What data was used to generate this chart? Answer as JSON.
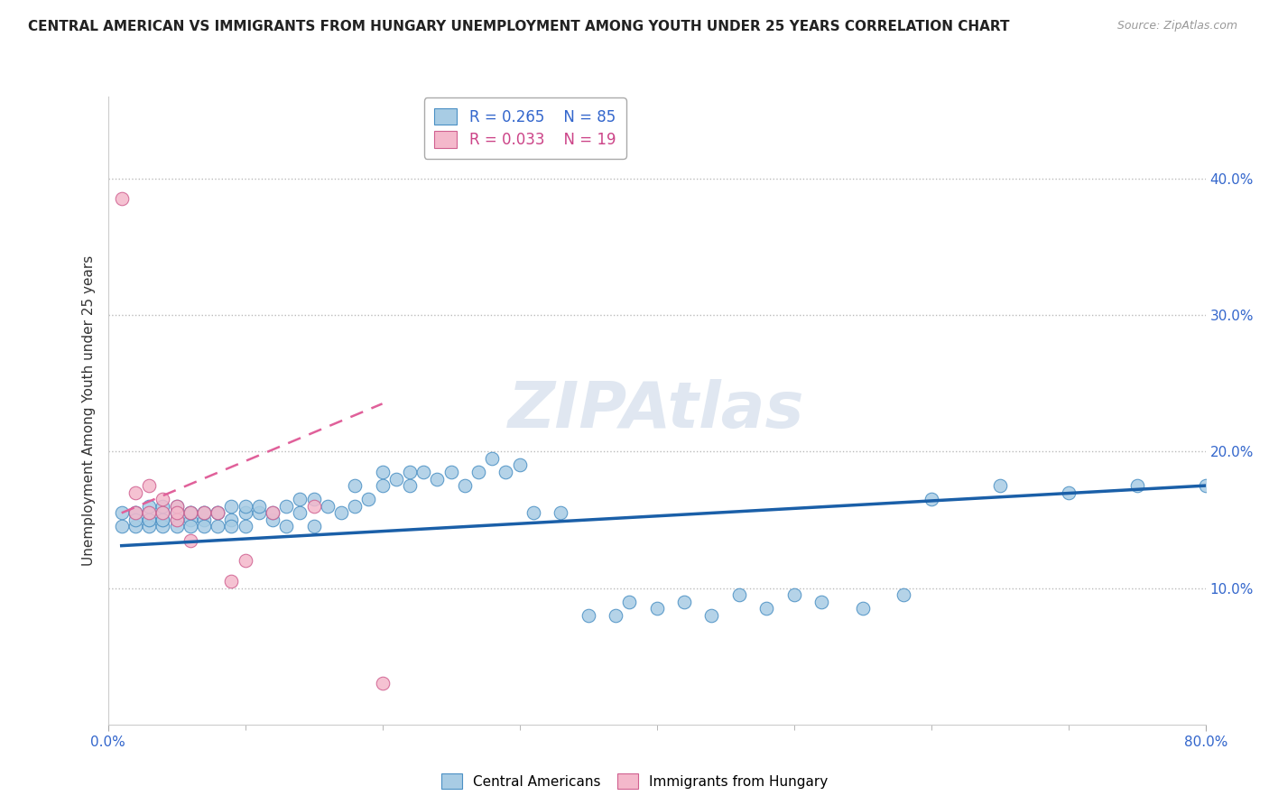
{
  "title": "CENTRAL AMERICAN VS IMMIGRANTS FROM HUNGARY UNEMPLOYMENT AMONG YOUTH UNDER 25 YEARS CORRELATION CHART",
  "source": "Source: ZipAtlas.com",
  "ylabel": "Unemployment Among Youth under 25 years",
  "xlim": [
    0.0,
    0.8
  ],
  "ylim": [
    0.0,
    0.46
  ],
  "legend_r1": "R = 0.265",
  "legend_n1": "N = 85",
  "legend_r2": "R = 0.033",
  "legend_n2": "N = 19",
  "blue_color": "#a8cce4",
  "blue_edge_color": "#4a90c4",
  "blue_line_color": "#1a5fa8",
  "pink_color": "#f4b8cb",
  "pink_edge_color": "#d06090",
  "pink_line_color": "#e0609a",
  "watermark": "ZIPAtlas",
  "watermark_color": "#ccd8e8",
  "blue_x": [
    0.01,
    0.01,
    0.02,
    0.02,
    0.02,
    0.02,
    0.03,
    0.03,
    0.03,
    0.03,
    0.03,
    0.04,
    0.04,
    0.04,
    0.04,
    0.04,
    0.05,
    0.05,
    0.05,
    0.05,
    0.05,
    0.06,
    0.06,
    0.06,
    0.06,
    0.07,
    0.07,
    0.07,
    0.07,
    0.08,
    0.08,
    0.08,
    0.09,
    0.09,
    0.09,
    0.1,
    0.1,
    0.1,
    0.11,
    0.11,
    0.12,
    0.12,
    0.13,
    0.13,
    0.14,
    0.14,
    0.15,
    0.15,
    0.16,
    0.17,
    0.18,
    0.18,
    0.19,
    0.2,
    0.2,
    0.21,
    0.22,
    0.22,
    0.23,
    0.24,
    0.25,
    0.26,
    0.27,
    0.28,
    0.29,
    0.3,
    0.31,
    0.33,
    0.35,
    0.37,
    0.38,
    0.4,
    0.42,
    0.44,
    0.46,
    0.48,
    0.5,
    0.52,
    0.55,
    0.58,
    0.6,
    0.65,
    0.7,
    0.75,
    0.8
  ],
  "blue_y": [
    0.155,
    0.145,
    0.155,
    0.145,
    0.155,
    0.15,
    0.15,
    0.145,
    0.155,
    0.15,
    0.16,
    0.15,
    0.145,
    0.155,
    0.16,
    0.15,
    0.15,
    0.155,
    0.145,
    0.16,
    0.155,
    0.15,
    0.155,
    0.145,
    0.155,
    0.15,
    0.155,
    0.145,
    0.155,
    0.155,
    0.145,
    0.155,
    0.15,
    0.16,
    0.145,
    0.155,
    0.16,
    0.145,
    0.155,
    0.16,
    0.15,
    0.155,
    0.145,
    0.16,
    0.155,
    0.165,
    0.145,
    0.165,
    0.16,
    0.155,
    0.175,
    0.16,
    0.165,
    0.185,
    0.175,
    0.18,
    0.175,
    0.185,
    0.185,
    0.18,
    0.185,
    0.175,
    0.185,
    0.195,
    0.185,
    0.19,
    0.155,
    0.155,
    0.08,
    0.08,
    0.09,
    0.085,
    0.09,
    0.08,
    0.095,
    0.085,
    0.095,
    0.09,
    0.085,
    0.095,
    0.165,
    0.175,
    0.17,
    0.175,
    0.175
  ],
  "pink_x": [
    0.01,
    0.02,
    0.02,
    0.03,
    0.03,
    0.04,
    0.04,
    0.05,
    0.05,
    0.05,
    0.06,
    0.06,
    0.07,
    0.08,
    0.09,
    0.1,
    0.12,
    0.15,
    0.2
  ],
  "pink_y": [
    0.385,
    0.17,
    0.155,
    0.155,
    0.175,
    0.155,
    0.165,
    0.15,
    0.16,
    0.155,
    0.135,
    0.155,
    0.155,
    0.155,
    0.105,
    0.12,
    0.155,
    0.16,
    0.03
  ],
  "blue_trend_x": [
    0.01,
    0.8
  ],
  "blue_trend_y": [
    0.131,
    0.175
  ],
  "pink_trend_x": [
    0.01,
    0.2
  ],
  "pink_trend_y": [
    0.155,
    0.235
  ]
}
